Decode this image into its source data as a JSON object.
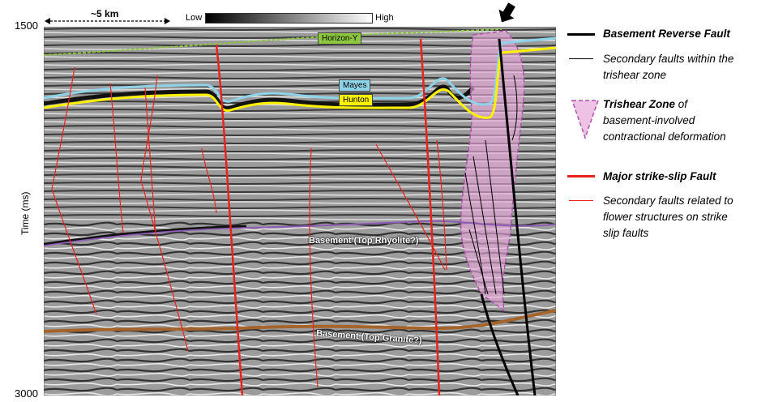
{
  "axis": {
    "y_label": "Time (ms)",
    "top_tick": "1500",
    "bottom_tick": "3000"
  },
  "scale_bar": {
    "label": "~5 km"
  },
  "colorbar": {
    "low": "Low",
    "high": "High"
  },
  "horizons": {
    "horizon_y": "Horizon-Y",
    "mayes": "Mayes",
    "hunton": "Hunton",
    "basement_rhyolite": "Basement (Top Rhyolite?)",
    "basement_granite": "Basement (Top Granite?)"
  },
  "legend": {
    "basement_reverse_fault": "Basement Reverse Fault",
    "secondary_faults_line1": "Secondary faults within the",
    "secondary_faults_line2": "trishear zone",
    "trishear_bold": "Trishear Zone",
    "trishear_of": " of",
    "trishear_line2": "basement-involved",
    "trishear_line3": "contractional deformation",
    "major_strike_slip": "Major strike-slip Fault",
    "secondary_flower_line1": "Secondary faults related to",
    "secondary_flower_line2": "flower structures on strike",
    "secondary_flower_line3": "slip faults"
  },
  "colors": {
    "basement_fault": "#000000",
    "strike_slip_fault": "#e8231f",
    "trishear_fill": "#e6a8d8",
    "trishear_border": "#b04fb0",
    "horizon_y": "#8dc63f",
    "mayes": "#8fd3e8",
    "hunton": "#fff200",
    "basement_rhyolite": "#8e5bb5",
    "basement_granite": "#a4642c"
  }
}
